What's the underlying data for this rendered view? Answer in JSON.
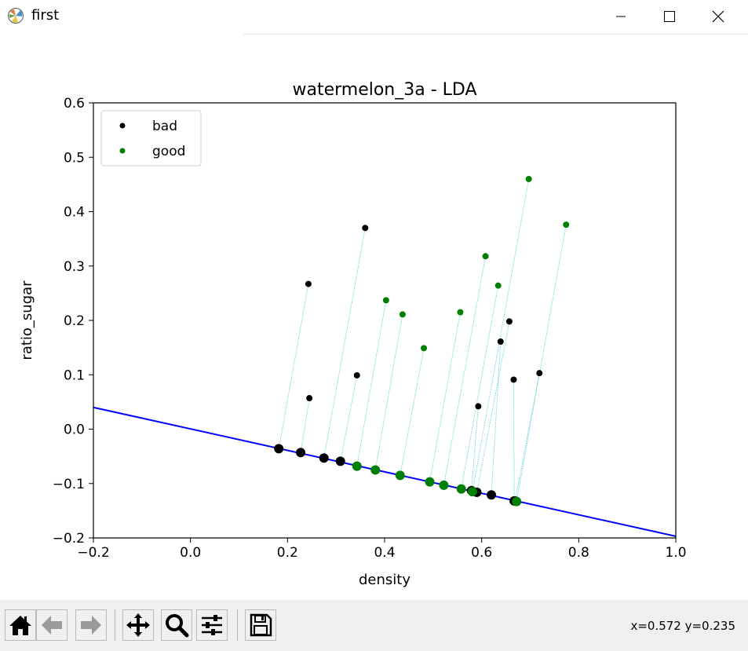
{
  "window": {
    "title": "first",
    "icon": "matplotlib-icon",
    "controls": [
      "minimize-icon",
      "maximize-icon",
      "close-icon"
    ]
  },
  "toolbar": {
    "buttons": [
      "home-icon",
      "back-icon",
      "forward-icon",
      "pan-icon",
      "zoom-icon",
      "configure-subplots-icon",
      "save-icon"
    ],
    "coords": "x=0.572 y=0.235"
  },
  "chart_data": {
    "type": "scatter",
    "title": "watermelon_3a - LDA",
    "xlabel": "density",
    "ylabel": "ratio_sugar",
    "xlim": [
      -0.2,
      1.0
    ],
    "ylim": [
      -0.2,
      0.6
    ],
    "xticks": [
      -0.2,
      0.0,
      0.2,
      0.4,
      0.6,
      0.8,
      1.0
    ],
    "xtick_labels": [
      "−0.2",
      "0.0",
      "0.2",
      "0.4",
      "0.6",
      "0.8",
      "1.0"
    ],
    "yticks": [
      -0.2,
      -0.1,
      0.0,
      0.1,
      0.2,
      0.3,
      0.4,
      0.5,
      0.6
    ],
    "ytick_labels": [
      "−0.2",
      "−0.1",
      "0.0",
      "0.1",
      "0.2",
      "0.3",
      "0.4",
      "0.5",
      "0.6"
    ],
    "grid": false,
    "legend": {
      "position": "upper-left",
      "entries": [
        "bad",
        "good"
      ]
    },
    "lda_line": {
      "points": [
        [
          -0.2,
          0.04
        ],
        [
          1.0,
          -0.197
        ]
      ],
      "color": "#0000ff"
    },
    "projection_color": "#5bd3d8",
    "series": [
      {
        "name": "bad",
        "color": "#000000",
        "points": [
          [
            0.243,
            0.267
          ],
          [
            0.245,
            0.057
          ],
          [
            0.343,
            0.099
          ],
          [
            0.36,
            0.37
          ],
          [
            0.593,
            0.042
          ],
          [
            0.639,
            0.161
          ],
          [
            0.657,
            0.198
          ],
          [
            0.666,
            0.091
          ],
          [
            0.719,
            0.103
          ]
        ],
        "projections": [
          [
            0.182,
            -0.036
          ],
          [
            0.227,
            -0.043
          ],
          [
            0.309,
            -0.059
          ],
          [
            0.275,
            -0.053
          ],
          [
            0.579,
            -0.113
          ],
          [
            0.62,
            -0.121
          ],
          [
            0.59,
            -0.116
          ],
          [
            0.667,
            -0.132
          ],
          [
            0.669,
            -0.132
          ]
        ]
      },
      {
        "name": "good",
        "color": "#008000",
        "points": [
          [
            0.403,
            0.237
          ],
          [
            0.437,
            0.211
          ],
          [
            0.481,
            0.149
          ],
          [
            0.556,
            0.215
          ],
          [
            0.608,
            0.318
          ],
          [
            0.634,
            0.264
          ],
          [
            0.697,
            0.46
          ],
          [
            0.774,
            0.376
          ]
        ],
        "projections": [
          [
            0.343,
            -0.068
          ],
          [
            0.381,
            -0.075
          ],
          [
            0.432,
            -0.085
          ],
          [
            0.493,
            -0.097
          ],
          [
            0.522,
            -0.103
          ],
          [
            0.558,
            -0.11
          ],
          [
            0.581,
            -0.115
          ],
          [
            0.672,
            -0.133
          ]
        ]
      }
    ]
  }
}
